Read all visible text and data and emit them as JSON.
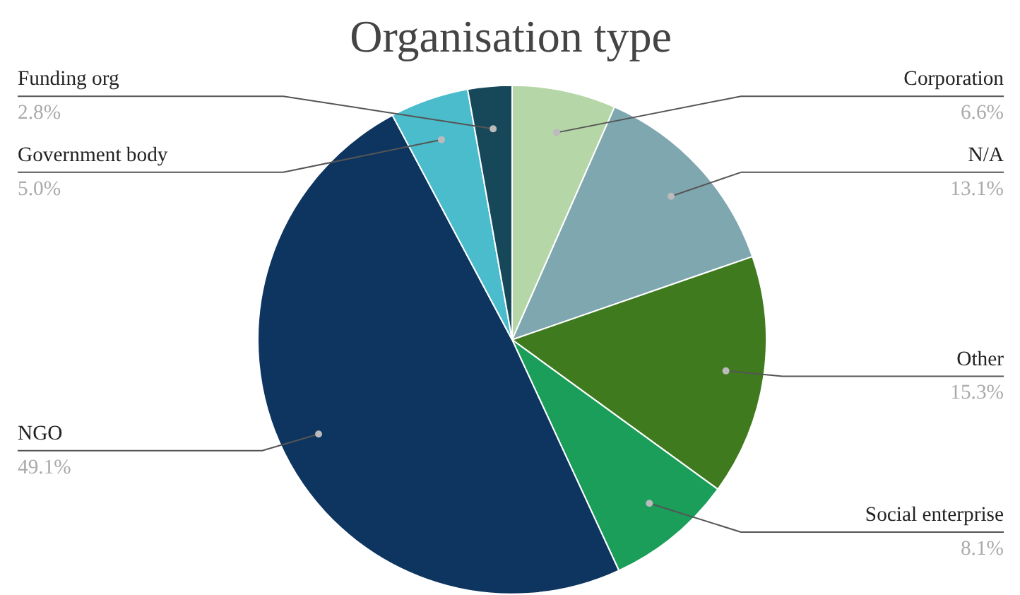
{
  "chart_data": {
    "type": "pie",
    "title": "Organisation type",
    "categories": [
      "Corporation",
      "N/A",
      "Other",
      "Social enterprise",
      "NGO",
      "Government body",
      "Funding org"
    ],
    "values": [
      6.6,
      13.1,
      15.3,
      8.1,
      49.1,
      5.0,
      2.8
    ],
    "value_labels": [
      "6.6%",
      "13.1%",
      "15.3%",
      "8.1%",
      "49.1%",
      "5.0%",
      "2.8%"
    ],
    "colors": [
      "#b5d6a7",
      "#7fa7b0",
      "#3f7a1e",
      "#1a9e5a",
      "#0d3560",
      "#4bbccc",
      "#17485a"
    ]
  }
}
